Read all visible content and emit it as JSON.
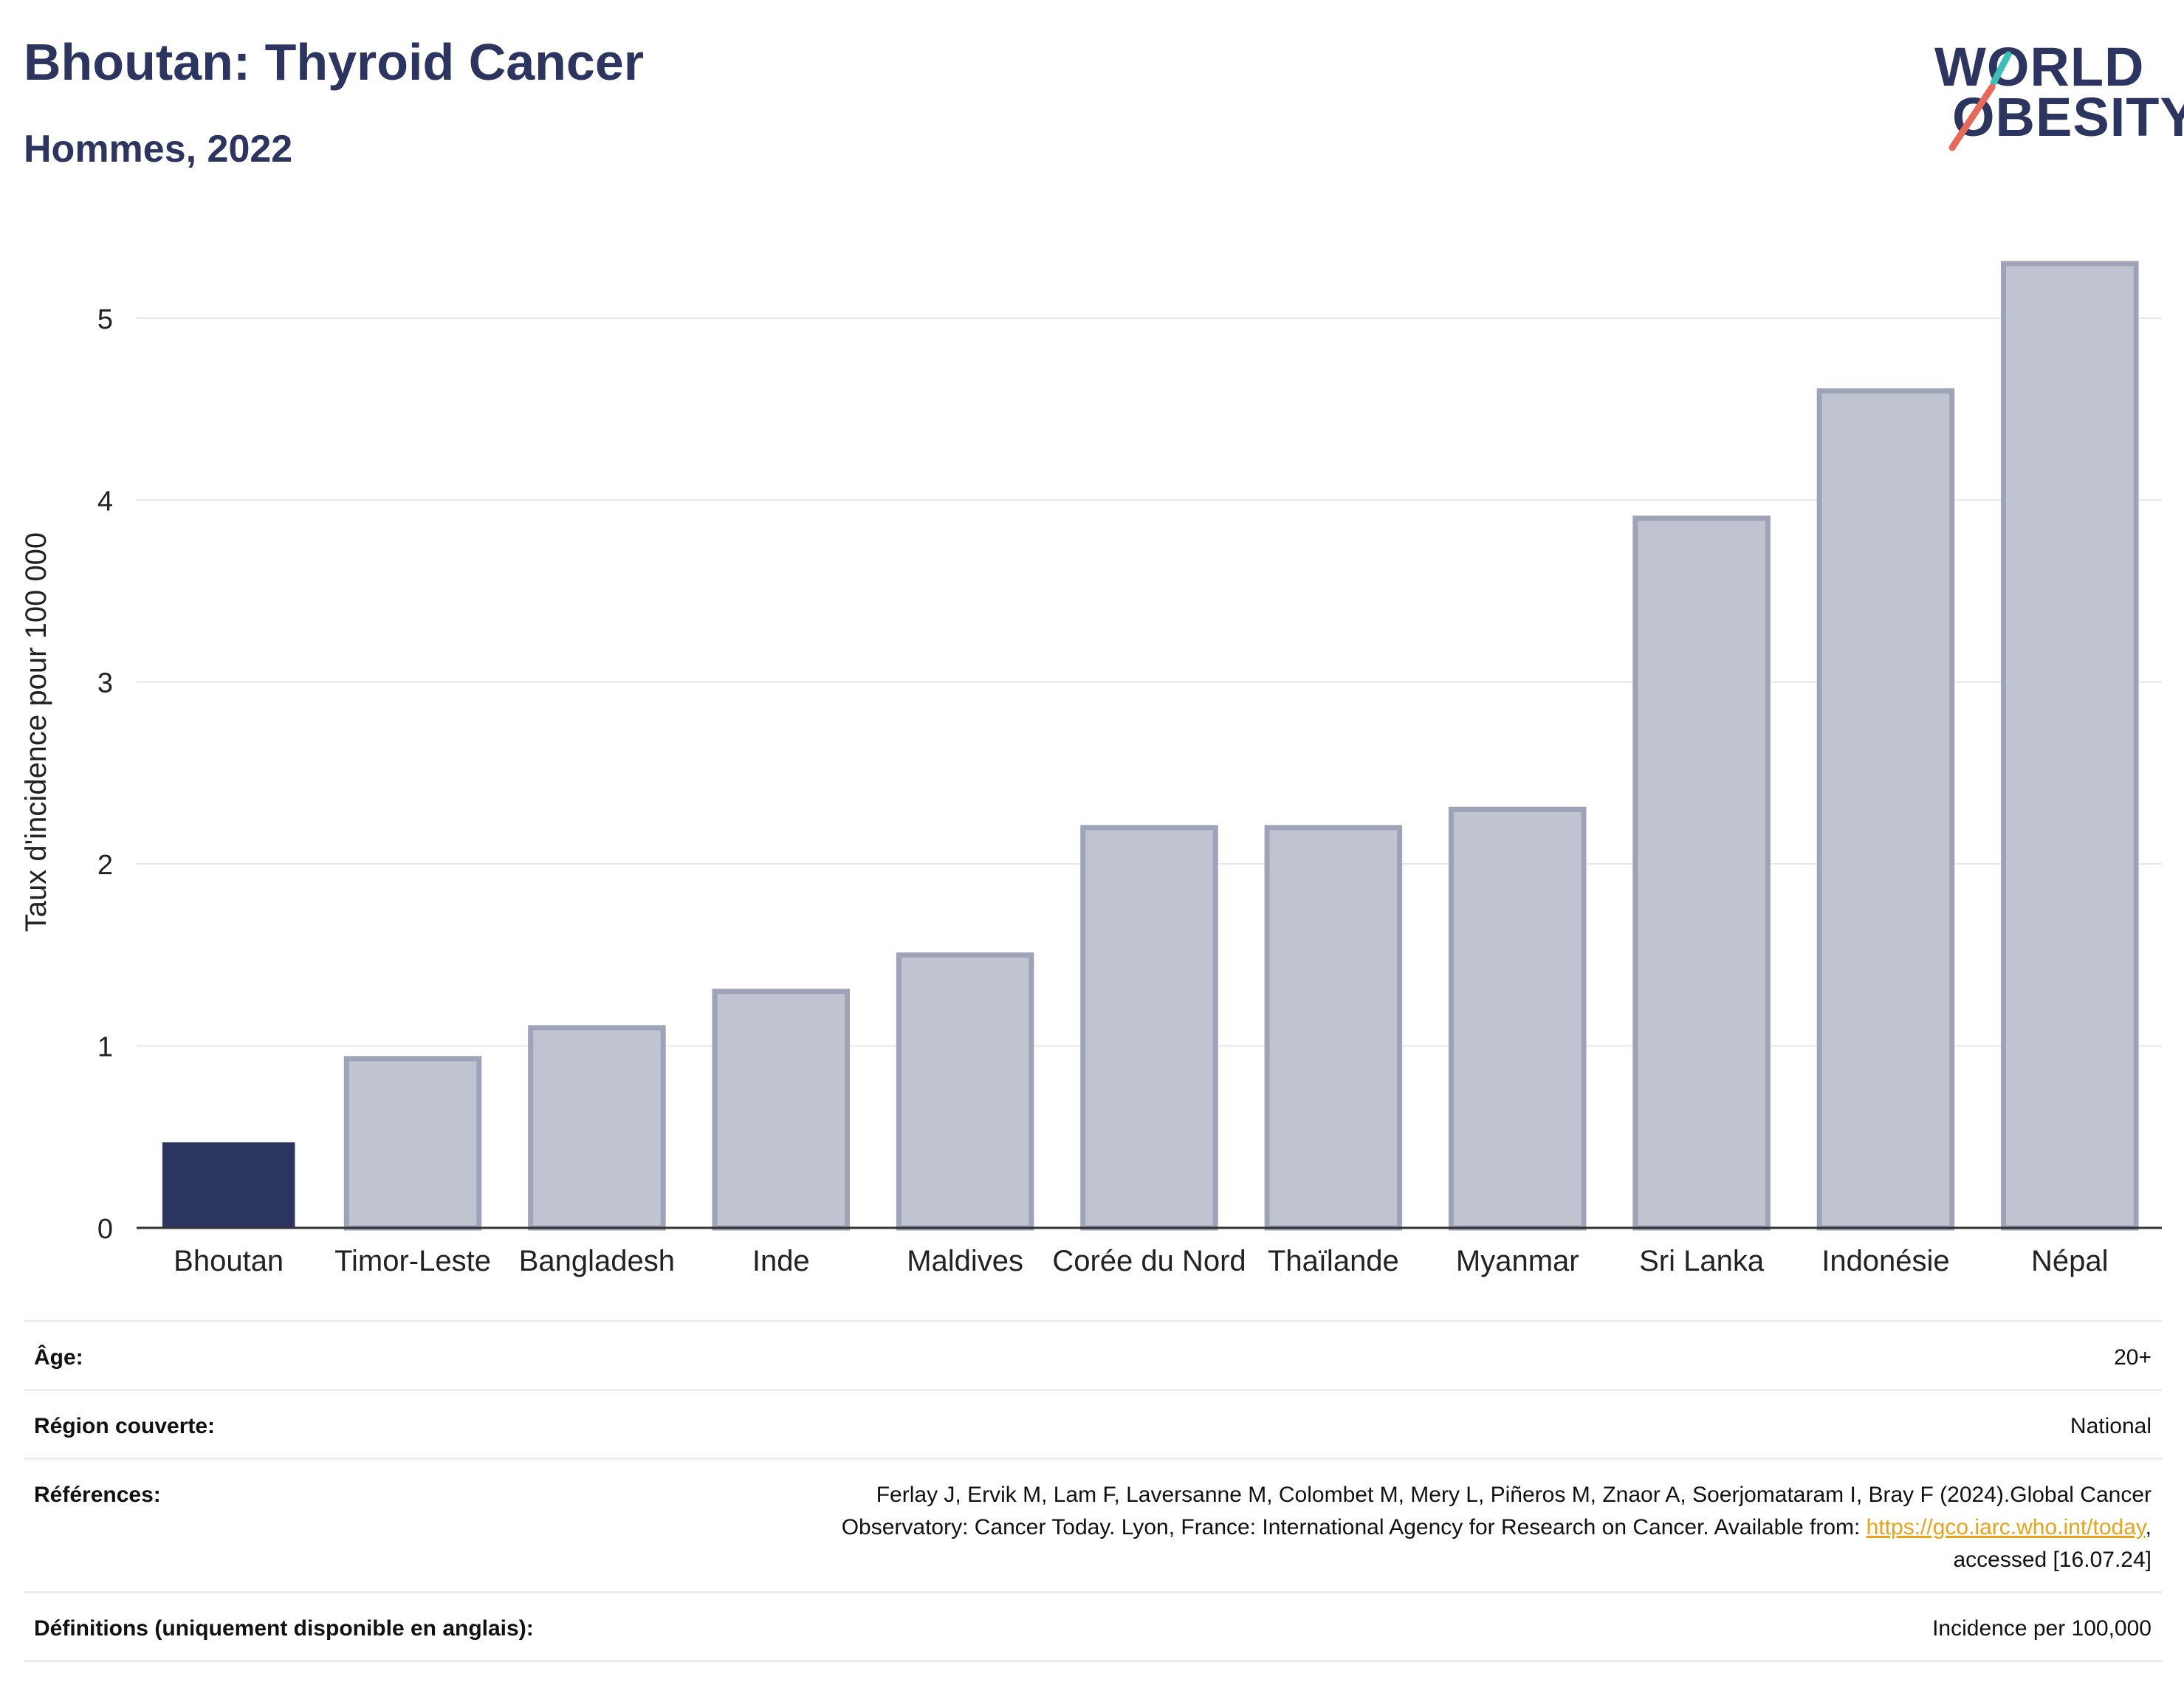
{
  "header": {
    "title": "Bhoutan: Thyroid Cancer",
    "subtitle": "Hommes, 2022"
  },
  "logo": {
    "line1": "WORLD",
    "line2": "OBESITY",
    "accent_teal": "#3bbfb6",
    "accent_red": "#e8685a"
  },
  "colors": {
    "highlight": "#2b3560",
    "bar": "#c0c3d0",
    "bar_border": "#9ea3b8"
  },
  "chart_data": {
    "type": "bar",
    "ylabel": "Taux d'incidence pour 100 000",
    "ylim": [
      0,
      5.45
    ],
    "yticks": [
      0,
      1,
      2,
      3,
      4,
      5
    ],
    "grid": true,
    "highlight": "Bhoutan",
    "categories": [
      "Bhoutan",
      "Timor-Leste",
      "Bangladesh",
      "Inde",
      "Maldives",
      "Corée du Nord",
      "Thaïlande",
      "Myanmar",
      "Sri Lanka",
      "Indonésie",
      "Népal"
    ],
    "values": [
      0.47,
      0.93,
      1.1,
      1.3,
      1.5,
      2.2,
      2.2,
      2.3,
      3.9,
      4.6,
      5.3
    ]
  },
  "meta": {
    "age_label": "Âge:",
    "age_value": "20+",
    "region_label": "Région couverte:",
    "region_value": "National",
    "ref_label": "Références:",
    "ref_text1": "Ferlay J, Ervik M, Lam F, Laversanne M, Colombet M, Mery L, Piñeros M, Znaor A, Soerjomataram I, Bray F (2024).Global Cancer",
    "ref_text2": "Observatory: Cancer Today. Lyon, France: International Agency for Research on Cancer. Available from: ",
    "ref_link": "https://gco.iarc.who.int/today",
    "ref_text3": ",",
    "ref_text4": "accessed [16.07.24]",
    "def_label": "Définitions (uniquement disponible en anglais):",
    "def_value": "Incidence per 100,000"
  }
}
